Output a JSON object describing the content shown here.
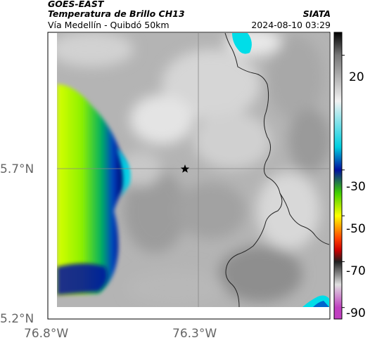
{
  "header": {
    "satellite": "GOES-EAST",
    "product": "Temperatura de Brillo CH13",
    "route": "Vía Medellín - Quibdó 50km",
    "agency": "SIATA",
    "datetime": "2024-08-10 03:29"
  },
  "map": {
    "lat_ticks": [
      "5.7°N",
      "5.2°N"
    ],
    "lon_ticks": [
      "76.8°W",
      "76.3°W"
    ],
    "marker": "star"
  },
  "colorbar": {
    "labels": [
      "20",
      "-30",
      "-50",
      "-70",
      "-90"
    ],
    "stops": [
      {
        "value": 30,
        "color": "#000000"
      },
      {
        "value": 20,
        "color": "#777777"
      },
      {
        "value": 0,
        "color": "#f2f2f2"
      },
      {
        "value": -20,
        "color": "#00cfe0"
      },
      {
        "value": -30,
        "color": "#0010a0"
      },
      {
        "value": -40,
        "color": "#40d000"
      },
      {
        "value": -50,
        "color": "#ffff00"
      },
      {
        "value": -60,
        "color": "#ff4000"
      },
      {
        "value": -65,
        "color": "#cc0000"
      },
      {
        "value": -70,
        "color": "#202020"
      },
      {
        "value": -80,
        "color": "#e0e0e0"
      },
      {
        "value": -90,
        "color": "#c040c0"
      }
    ]
  }
}
